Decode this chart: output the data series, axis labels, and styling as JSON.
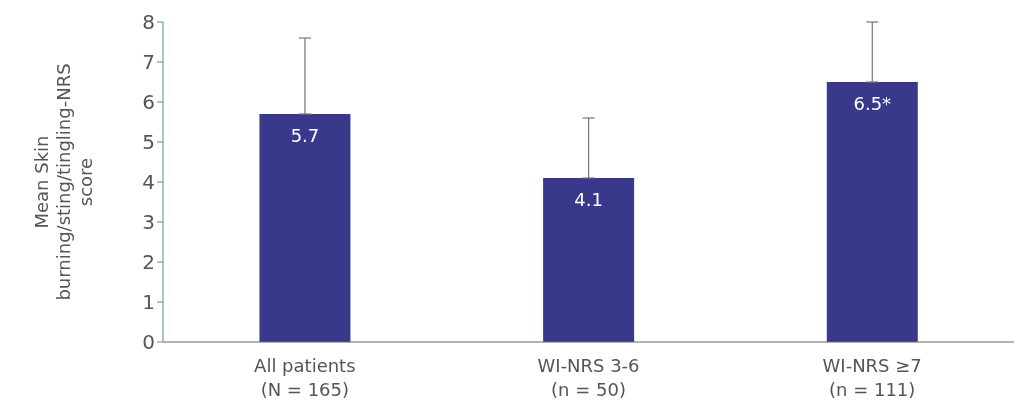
{
  "chart_data": {
    "type": "bar",
    "ylabel": "Mean Skin\nburning/sting/tingling-NRS\nscore",
    "categories": [
      "All patients\n(N = 165)",
      "WI-NRS 3-6\n(n = 50)",
      "WI-NRS ≥7\n(n = 111)"
    ],
    "values": [
      5.7,
      4.1,
      6.5
    ],
    "value_labels": [
      "5.7",
      "4.1",
      "6.5*"
    ],
    "errors": [
      [
        5.7,
        7.6
      ],
      [
        4.1,
        5.6
      ],
      [
        6.5,
        8.0
      ]
    ],
    "color": "#39398b",
    "ylim": [
      0,
      8
    ],
    "yticks": [
      0,
      1,
      2,
      3,
      4,
      5,
      6,
      7,
      8
    ],
    "grid": false,
    "legend": false
  }
}
